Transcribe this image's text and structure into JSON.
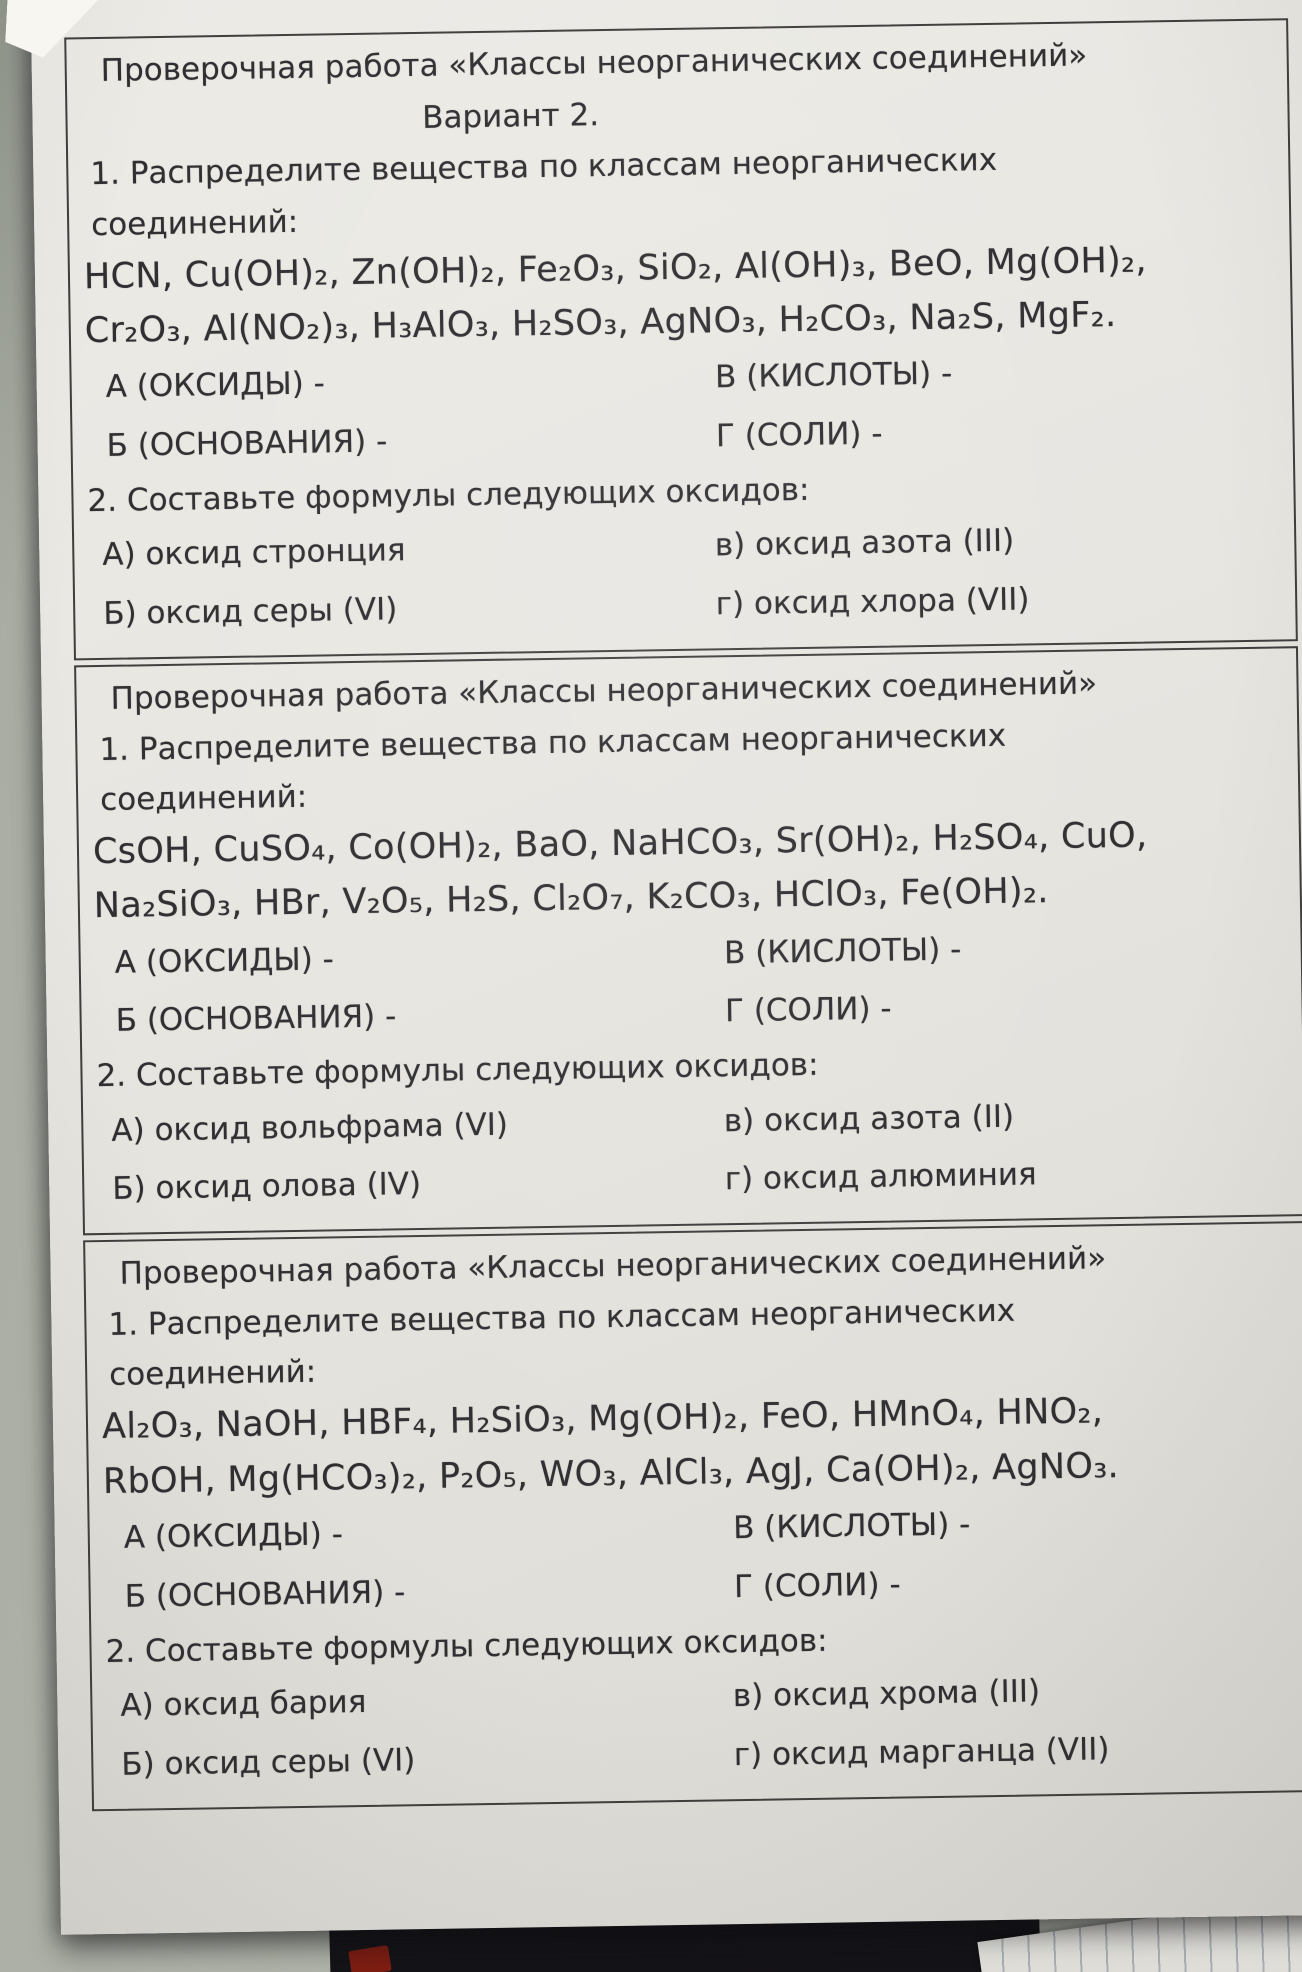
{
  "scene": {
    "colors": {
      "background-color": "#a9ada3",
      "paper-color": "#e8e6e1",
      "ink-color": "#2f2e31",
      "line-color": "#3f3e3c",
      "dark-object-color": "#141317",
      "red-object-color": "#7e1d12",
      "scrap-paper-color": "#deddd8"
    }
  },
  "sections": [
    {
      "title": "Проверочная работа «Классы неорганических соединений»",
      "variant": "Вариант 2.",
      "task1_line1": "1. Распределите вещества по классам неорганических",
      "task1_line2": "соединений:",
      "substances_line1": "HCN, Cu(OH)₂, Zn(OH)₂, Fe₂O₃, SiO₂, Al(OH)₃, BeO, Mg(OH)₂,",
      "substances_line2": "Cr₂O₃, Al(NO₂)₃, H₃AlO₃, H₂SO₃, AgNO₃, H₂CO₃, Na₂S, MgF₂.",
      "classes": {
        "oxides": "А (ОКСИДЫ) -",
        "bases": "Б (ОСНОВАНИЯ) -",
        "acids": "В (КИСЛОТЫ) -",
        "salts": "Г (СОЛИ) -"
      },
      "task2": "2. Составьте формулы следующих оксидов:",
      "oxide_tasks": {
        "a": "А) оксид стронция",
        "b": "Б) оксид серы (VI)",
        "v": "в) оксид азота (III)",
        "g": "г) оксид хлора (VII)"
      }
    },
    {
      "title": "Проверочная работа «Классы неорганических соединений»",
      "task1_line1": "1. Распределите вещества по классам неорганических",
      "task1_line2": "соединений:",
      "substances_line1": "CsOH, CuSO₄, Co(OH)₂, BaO, NaHCO₃, Sr(OH)₂, H₂SO₄, CuO,",
      "substances_line2": "Na₂SiO₃, HBr, V₂O₅, H₂S, Cl₂O₇, K₂CO₃, HClO₃, Fe(OH)₂.",
      "classes": {
        "oxides": "А (ОКСИДЫ) -",
        "bases": "Б (ОСНОВАНИЯ) -",
        "acids": "В (КИСЛОТЫ) -",
        "salts": "Г (СОЛИ) -"
      },
      "task2": "2. Составьте формулы следующих оксидов:",
      "oxide_tasks": {
        "a": "А) оксид вольфрама (VI)",
        "b": "Б) оксид олова (IV)",
        "v": "в) оксид азота (II)",
        "g": "г) оксид алюминия"
      }
    },
    {
      "title": "Проверочная работа «Классы неорганических соединений»",
      "task1_line1": "1. Распределите вещества по классам неорганических",
      "task1_line2": "соединений:",
      "substances_line1": "Al₂O₃, NaOH, HBF₄, H₂SiO₃, Mg(OH)₂, FeO, HMnO₄, HNO₂,",
      "substances_line2": "RbOH, Mg(HCO₃)₂, P₂O₅, WO₃, AlCl₃, AgJ, Ca(OH)₂, AgNO₃.",
      "classes": {
        "oxides": "А (ОКСИДЫ) -",
        "bases": "Б (ОСНОВАНИЯ) -",
        "acids": "В (КИСЛОТЫ) -",
        "salts": "Г (СОЛИ) -"
      },
      "task2": "2. Составьте формулы следующих оксидов:",
      "oxide_tasks": {
        "a": "А) оксид бария",
        "b": "Б) оксид серы (VI)",
        "v": "в) оксид хрома (III)",
        "g": "г) оксид марганца (VII)"
      }
    }
  ]
}
